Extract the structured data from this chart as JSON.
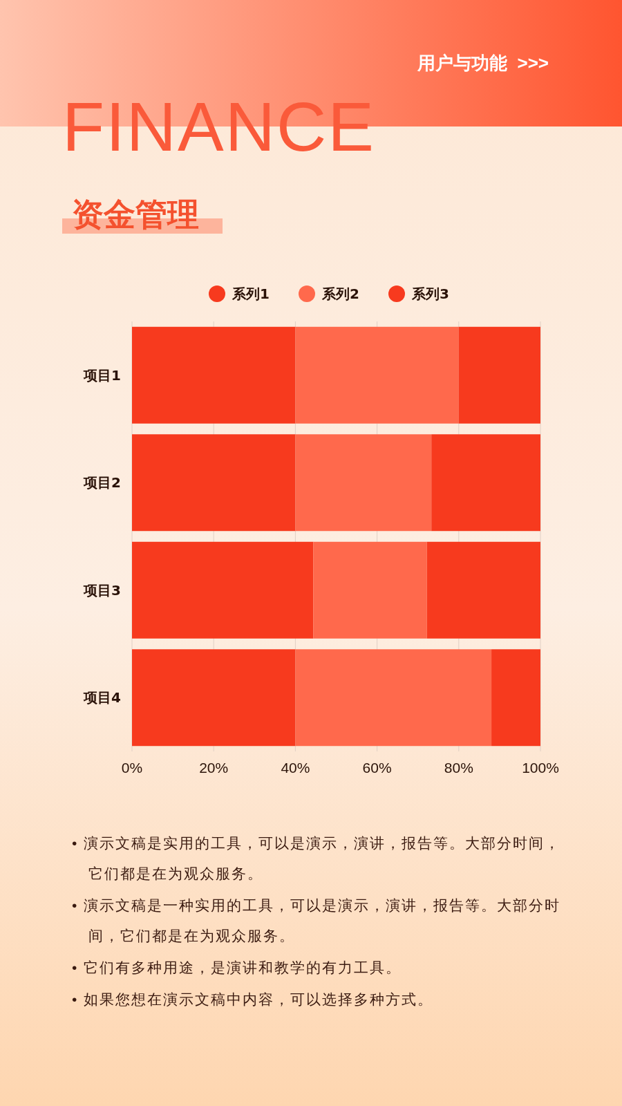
{
  "chart_data": {
    "type": "bar",
    "orientation": "horizontal",
    "stacked": true,
    "title": "FINANCE",
    "subtitle": "资金管理",
    "categories": [
      "项目1",
      "项目2",
      "项目3",
      "项目4"
    ],
    "series": [
      {
        "name": "系列1",
        "color": "#f73a1e",
        "values": [
          40,
          40,
          44.4,
          40
        ]
      },
      {
        "name": "系列2",
        "color": "#ff694c",
        "values": [
          40,
          33.3,
          27.8,
          48
        ]
      },
      {
        "name": "系列3",
        "color": "#f73a1e",
        "values": [
          20,
          26.7,
          27.8,
          12
        ]
      }
    ],
    "xlim": [
      0,
      100
    ],
    "xticks": [
      {
        "value": 0,
        "label": "0%"
      },
      {
        "value": 20,
        "label": "20%"
      },
      {
        "value": 40,
        "label": "40%"
      },
      {
        "value": 60,
        "label": "60%"
      },
      {
        "value": 80,
        "label": "80%"
      },
      {
        "value": 100,
        "label": "100%"
      }
    ],
    "grid": "x",
    "legend": "top",
    "annotations": [
      "用户与功能  >>>",
      "•  演示文稿是实用的工具，可以是演示，演讲，报告等。大部分时间，它们都是在为观众服务。",
      "•  演示文稿是一种实用的工具，可以是演示，演讲，报告等。大部分时间，它们都是在为观众服务。",
      "•  它们有多种用途，是演讲和教学的有力工具。",
      "•  如果您想在演示文稿中内容，可以选择多种方式。"
    ]
  }
}
